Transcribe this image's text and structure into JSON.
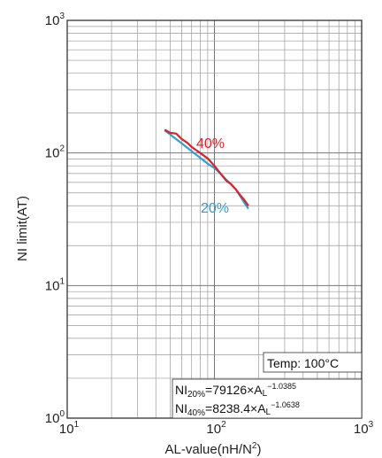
{
  "chart_data": {
    "type": "line",
    "x_scale": "log",
    "y_scale": "log",
    "xlim": [
      10,
      1000
    ],
    "ylim": [
      1,
      1000
    ],
    "grid": true,
    "xlabel": {
      "main": "AL-value(nH/N",
      "sup": "2",
      "tail": ")"
    },
    "ylabel": "NI limit(AT)",
    "x_ticks": [
      {
        "base": "10",
        "exp": "1",
        "value": 10
      },
      {
        "base": "10",
        "exp": "2",
        "value": 100
      },
      {
        "base": "10",
        "exp": "3",
        "value": 1000
      }
    ],
    "y_ticks": [
      {
        "base": "10",
        "exp": "0",
        "value": 1
      },
      {
        "base": "10",
        "exp": "1",
        "value": 10
      },
      {
        "base": "10",
        "exp": "2",
        "value": 100
      },
      {
        "base": "10",
        "exp": "3",
        "value": 1000
      }
    ],
    "series": [
      {
        "name": "40%",
        "color": "#d8232a",
        "x": [
          46,
          50,
          55,
          60,
          65,
          70,
          80,
          90,
          100,
          110,
          120,
          130,
          140,
          150,
          160,
          170
        ],
        "y": [
          150,
          142,
          140,
          127,
          120,
          111,
          100,
          91,
          80,
          70,
          62,
          58,
          53,
          48,
          44,
          40
        ]
      },
      {
        "name": "20%",
        "color": "#2e9fd4",
        "x": [
          46,
          50,
          55,
          60,
          65,
          70,
          80,
          90,
          100,
          110,
          120,
          130,
          140,
          150,
          160,
          170
        ],
        "y": [
          148,
          138,
          127,
          118,
          110,
          103,
          92,
          83,
          77,
          70,
          63,
          58,
          53,
          47,
          42,
          38
        ]
      }
    ],
    "annotations": {
      "temp": "Temp: 100°C",
      "eq20": {
        "pre": "NI",
        "sub": "20%",
        "mid": "=79126×A",
        "sub2": "L",
        "sup": "−1.0385"
      },
      "eq40": {
        "pre": "NI",
        "sub": "40%",
        "mid": "=8238.4×A",
        "sub2": "L",
        "sup": "−1.0638"
      }
    }
  }
}
